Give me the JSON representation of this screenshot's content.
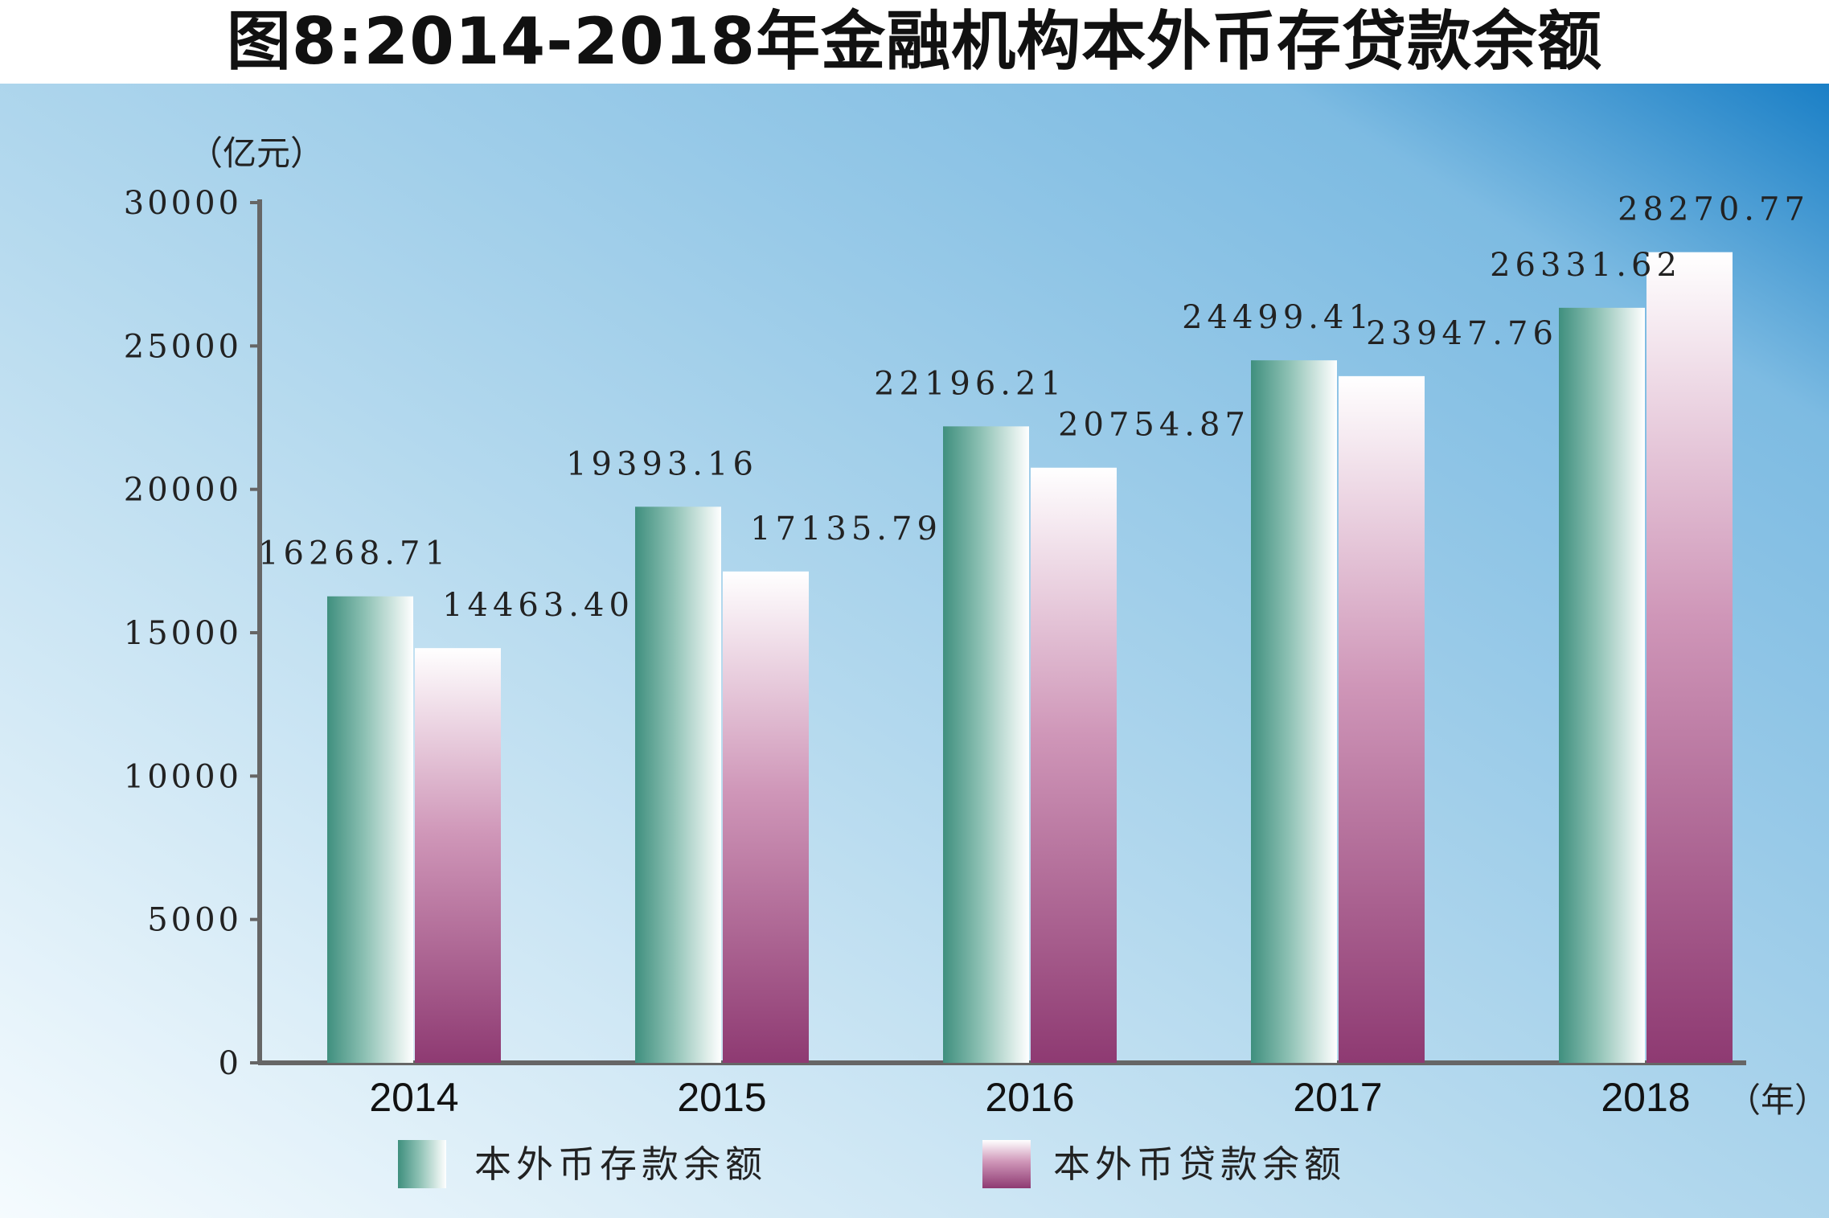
{
  "chart_data": {
    "type": "bar",
    "title": "图8:2014-2018年金融机构本外币存贷款余额",
    "ylabel": "（亿元）",
    "xlabel": "（年）",
    "categories": [
      "2014",
      "2015",
      "2016",
      "2017",
      "2018"
    ],
    "series": [
      {
        "name": "本外币存款余额",
        "values": [
          16268.71,
          19393.16,
          22196.21,
          24499.41,
          26331.62
        ]
      },
      {
        "name": "本外币贷款余额",
        "values": [
          14463.4,
          17135.79,
          20754.87,
          23947.76,
          28270.77
        ]
      }
    ],
    "value_labels": [
      [
        "16268.71",
        "19393.16",
        "22196.21",
        "24499.41",
        "26331.62"
      ],
      [
        "14463.40",
        "17135.79",
        "20754.87",
        "23947.76",
        "28270.77"
      ]
    ],
    "ylim": [
      0,
      30000
    ],
    "yticks": [
      "0",
      "5000",
      "10000",
      "15000",
      "20000",
      "25000",
      "30000"
    ],
    "grid": false,
    "legend_position": "bottom",
    "colors": {
      "deposit_dark": "#3f8f7e",
      "deposit_light": "#ffffff",
      "loan_dark": "#8e3a72",
      "loan_light": "#ffffff",
      "background_light": "#f4fafd",
      "background_dark": "#1a7fc6"
    }
  }
}
